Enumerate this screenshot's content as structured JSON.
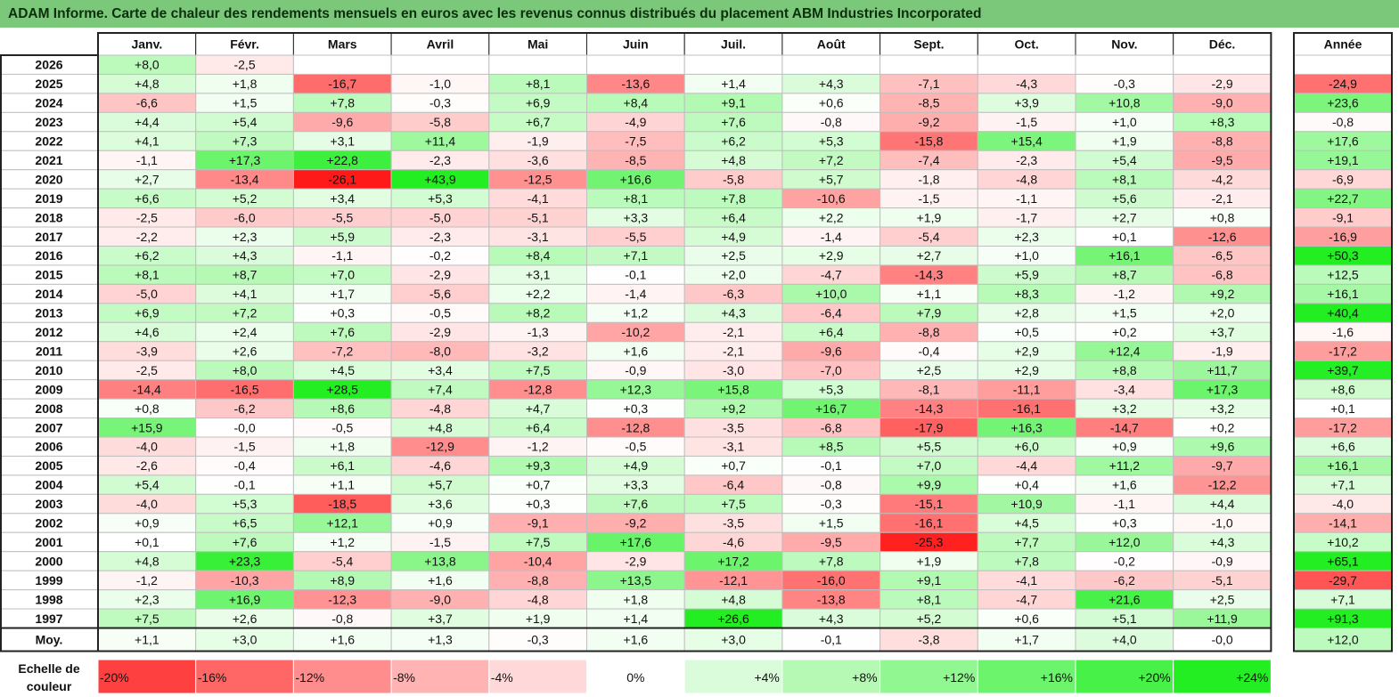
{
  "title": "ADAM Informe. Carte de chaleur des rendements mensuels en euros avec les revenus connus distribués du placement ABM Industries Incorporated",
  "chart_data": {
    "type": "heatmap",
    "title": "ADAM Informe. Carte de chaleur des rendements mensuels en euros avec les revenus connus distribués du placement ABM Industries Incorporated",
    "months": [
      "Janv.",
      "Févr.",
      "Mars",
      "Avril",
      "Mai",
      "Juin",
      "Juil.",
      "Août",
      "Sept.",
      "Oct.",
      "Nov.",
      "Déc."
    ],
    "year_header": "Année",
    "rows": [
      {
        "year": "2026",
        "values": [
          "+8,0",
          "-2,5",
          "",
          "",
          "",
          "",
          "",
          "",
          "",
          "",
          "",
          ""
        ],
        "annual": ""
      },
      {
        "year": "2025",
        "values": [
          "+4,8",
          "+1,8",
          "-16,7",
          "-1,0",
          "+8,1",
          "-13,6",
          "+1,4",
          "+4,3",
          "-7,1",
          "-4,3",
          "-0,3",
          "-2,9"
        ],
        "annual": "-24,9"
      },
      {
        "year": "2024",
        "values": [
          "-6,6",
          "+1,5",
          "+7,8",
          "-0,3",
          "+6,9",
          "+8,4",
          "+9,1",
          "+0,6",
          "-8,5",
          "+3,9",
          "+10,8",
          "-9,0"
        ],
        "annual": "+23,6"
      },
      {
        "year": "2023",
        "values": [
          "+4,4",
          "+5,4",
          "-9,6",
          "-5,8",
          "+6,7",
          "-4,9",
          "+7,6",
          "-0,8",
          "-9,2",
          "-1,5",
          "+1,0",
          "+8,3"
        ],
        "annual": "-0,8"
      },
      {
        "year": "2022",
        "values": [
          "+4,1",
          "+7,3",
          "+3,1",
          "+11,4",
          "-1,9",
          "-7,5",
          "+6,2",
          "+5,3",
          "-15,8",
          "+15,4",
          "+1,9",
          "-8,8"
        ],
        "annual": "+17,6"
      },
      {
        "year": "2021",
        "values": [
          "-1,1",
          "+17,3",
          "+22,8",
          "-2,3",
          "-3,6",
          "-8,5",
          "+4,8",
          "+7,2",
          "-7,4",
          "-2,3",
          "+5,4",
          "-9,5"
        ],
        "annual": "+19,1"
      },
      {
        "year": "2020",
        "values": [
          "+2,7",
          "-13,4",
          "-26,1",
          "+43,9",
          "-12,5",
          "+16,6",
          "-5,8",
          "+5,7",
          "-1,8",
          "-4,8",
          "+8,1",
          "-4,2"
        ],
        "annual": "-6,9"
      },
      {
        "year": "2019",
        "values": [
          "+6,6",
          "+5,2",
          "+3,4",
          "+5,3",
          "-4,1",
          "+8,1",
          "+7,8",
          "-10,6",
          "-1,5",
          "-1,1",
          "+5,6",
          "-2,1"
        ],
        "annual": "+22,7"
      },
      {
        "year": "2018",
        "values": [
          "-2,5",
          "-6,0",
          "-5,5",
          "-5,0",
          "-5,1",
          "+3,3",
          "+6,4",
          "+2,2",
          "+1,9",
          "-1,7",
          "+2,7",
          "+0,8"
        ],
        "annual": "-9,1"
      },
      {
        "year": "2017",
        "values": [
          "-2,2",
          "+2,3",
          "+5,9",
          "-2,3",
          "-3,1",
          "-5,5",
          "+4,9",
          "-1,4",
          "-5,4",
          "+2,3",
          "+0,1",
          "-12,6"
        ],
        "annual": "-16,9"
      },
      {
        "year": "2016",
        "values": [
          "+6,2",
          "+4,3",
          "-1,1",
          "-0,2",
          "+8,4",
          "+7,1",
          "+2,5",
          "+2,9",
          "+2,7",
          "+1,0",
          "+16,1",
          "-6,5"
        ],
        "annual": "+50,3"
      },
      {
        "year": "2015",
        "values": [
          "+8,1",
          "+8,7",
          "+7,0",
          "-2,9",
          "+3,1",
          "-0,1",
          "+2,0",
          "-4,7",
          "-14,3",
          "+5,9",
          "+8,7",
          "-6,8"
        ],
        "annual": "+12,5"
      },
      {
        "year": "2014",
        "values": [
          "-5,0",
          "+4,1",
          "+1,7",
          "-5,6",
          "+2,2",
          "-1,4",
          "-6,3",
          "+10,0",
          "+1,1",
          "+8,3",
          "-1,2",
          "+9,2"
        ],
        "annual": "+16,1"
      },
      {
        "year": "2013",
        "values": [
          "+6,9",
          "+7,2",
          "+0,3",
          "-0,5",
          "+8,2",
          "+1,2",
          "+4,3",
          "-6,4",
          "+7,9",
          "+2,8",
          "+1,5",
          "+2,0"
        ],
        "annual": "+40,4"
      },
      {
        "year": "2012",
        "values": [
          "+4,6",
          "+2,4",
          "+7,6",
          "-2,9",
          "-1,3",
          "-10,2",
          "-2,1",
          "+6,4",
          "-8,8",
          "+0,5",
          "+0,2",
          "+3,7"
        ],
        "annual": "-1,6"
      },
      {
        "year": "2011",
        "values": [
          "-3,9",
          "+2,6",
          "-7,2",
          "-8,0",
          "-3,2",
          "+1,6",
          "-2,1",
          "-9,6",
          "-0,4",
          "+2,9",
          "+12,4",
          "-1,9"
        ],
        "annual": "-17,2"
      },
      {
        "year": "2010",
        "values": [
          "-2,5",
          "+8,0",
          "+4,5",
          "+3,4",
          "+7,5",
          "-0,9",
          "-3,0",
          "-7,0",
          "+2,5",
          "+2,9",
          "+8,8",
          "+11,7"
        ],
        "annual": "+39,7"
      },
      {
        "year": "2009",
        "values": [
          "-14,4",
          "-16,5",
          "+28,5",
          "+7,4",
          "-12,8",
          "+12,3",
          "+15,8",
          "+5,3",
          "-8,1",
          "-11,1",
          "-3,4",
          "+17,3"
        ],
        "annual": "+8,6"
      },
      {
        "year": "2008",
        "values": [
          "+0,8",
          "-6,2",
          "+8,6",
          "-4,8",
          "+4,7",
          "+0,3",
          "+9,2",
          "+16,7",
          "-14,3",
          "-16,1",
          "+3,2",
          "+3,2"
        ],
        "annual": "+0,1"
      },
      {
        "year": "2007",
        "values": [
          "+15,9",
          "-0,0",
          "-0,5",
          "+4,8",
          "+6,4",
          "-12,8",
          "-3,5",
          "-6,8",
          "-17,9",
          "+16,3",
          "-14,7",
          "+0,2"
        ],
        "annual": "-17,2"
      },
      {
        "year": "2006",
        "values": [
          "-4,0",
          "-1,5",
          "+1,8",
          "-12,9",
          "-1,2",
          "-0,5",
          "-3,1",
          "+8,5",
          "+5,5",
          "+6,0",
          "+0,9",
          "+9,6"
        ],
        "annual": "+6,6"
      },
      {
        "year": "2005",
        "values": [
          "-2,6",
          "-0,4",
          "+6,1",
          "-4,6",
          "+9,3",
          "+4,9",
          "+0,7",
          "-0,1",
          "+7,0",
          "-4,4",
          "+11,2",
          "-9,7"
        ],
        "annual": "+16,1"
      },
      {
        "year": "2004",
        "values": [
          "+5,4",
          "-0,1",
          "+1,1",
          "+5,7",
          "+0,7",
          "+3,3",
          "-6,4",
          "-0,8",
          "+9,9",
          "+0,4",
          "+1,6",
          "-12,2"
        ],
        "annual": "+7,1"
      },
      {
        "year": "2003",
        "values": [
          "-4,0",
          "+5,3",
          "-18,5",
          "+3,6",
          "+0,3",
          "+7,6",
          "+7,5",
          "-0,3",
          "-15,1",
          "+10,9",
          "-1,1",
          "+4,4"
        ],
        "annual": "-4,0"
      },
      {
        "year": "2002",
        "values": [
          "+0,9",
          "+6,5",
          "+12,1",
          "+0,9",
          "-9,1",
          "-9,2",
          "-3,5",
          "+1,5",
          "-16,1",
          "+4,5",
          "+0,3",
          "-1,0"
        ],
        "annual": "-14,1"
      },
      {
        "year": "2001",
        "values": [
          "+0,1",
          "+7,6",
          "+1,2",
          "-1,5",
          "+7,5",
          "+17,6",
          "-4,6",
          "-9,5",
          "-25,3",
          "+7,7",
          "+12,0",
          "+4,3"
        ],
        "annual": "+10,2"
      },
      {
        "year": "2000",
        "values": [
          "+4,8",
          "+23,3",
          "-5,4",
          "+13,8",
          "-10,4",
          "-2,9",
          "+17,2",
          "+7,8",
          "+1,9",
          "+7,8",
          "-0,2",
          "-0,9"
        ],
        "annual": "+65,1"
      },
      {
        "year": "1999",
        "values": [
          "-1,2",
          "-10,3",
          "+8,9",
          "+1,6",
          "-8,8",
          "+13,5",
          "-12,1",
          "-16,0",
          "+9,1",
          "-4,1",
          "-6,2",
          "-5,1"
        ],
        "annual": "-29,7"
      },
      {
        "year": "1998",
        "values": [
          "+2,3",
          "+16,9",
          "-12,3",
          "-9,0",
          "-4,8",
          "+1,8",
          "+4,8",
          "-13,8",
          "+8,1",
          "-4,7",
          "+21,6",
          "+2,5"
        ],
        "annual": "+7,1"
      },
      {
        "year": "1997",
        "values": [
          "+7,5",
          "+2,6",
          "-0,8",
          "+3,7",
          "+1,9",
          "+1,4",
          "+26,6",
          "+4,3",
          "+5,2",
          "+0,6",
          "+5,1",
          "+11,9"
        ],
        "annual": "+91,3"
      }
    ],
    "average": {
      "label": "Moy.",
      "values": [
        "+1,1",
        "+3,0",
        "+1,6",
        "+1,3",
        "-0,3",
        "+1,6",
        "+3,0",
        "-0,1",
        "-3,8",
        "+1,7",
        "+4,0",
        "-0,0"
      ],
      "annual": "+12,0"
    },
    "scale": {
      "label_line1": "Echelle de",
      "label_line2": "couleur",
      "labels": [
        "-20%",
        "-16%",
        "-12%",
        "-8%",
        "-4%",
        "0%",
        "+4%",
        "+8%",
        "+12%",
        "+16%",
        "+20%",
        "+24%"
      ],
      "values": [
        -20,
        -16,
        -12,
        -8,
        -4,
        0,
        4,
        8,
        12,
        16,
        20,
        24
      ]
    },
    "colors": {
      "negative_max": "#ff1a1a",
      "neutral": "#ffffff",
      "positive_max": "#22ee22",
      "title_bar": "#7bc87b",
      "grid": "#bfbfbf"
    }
  }
}
